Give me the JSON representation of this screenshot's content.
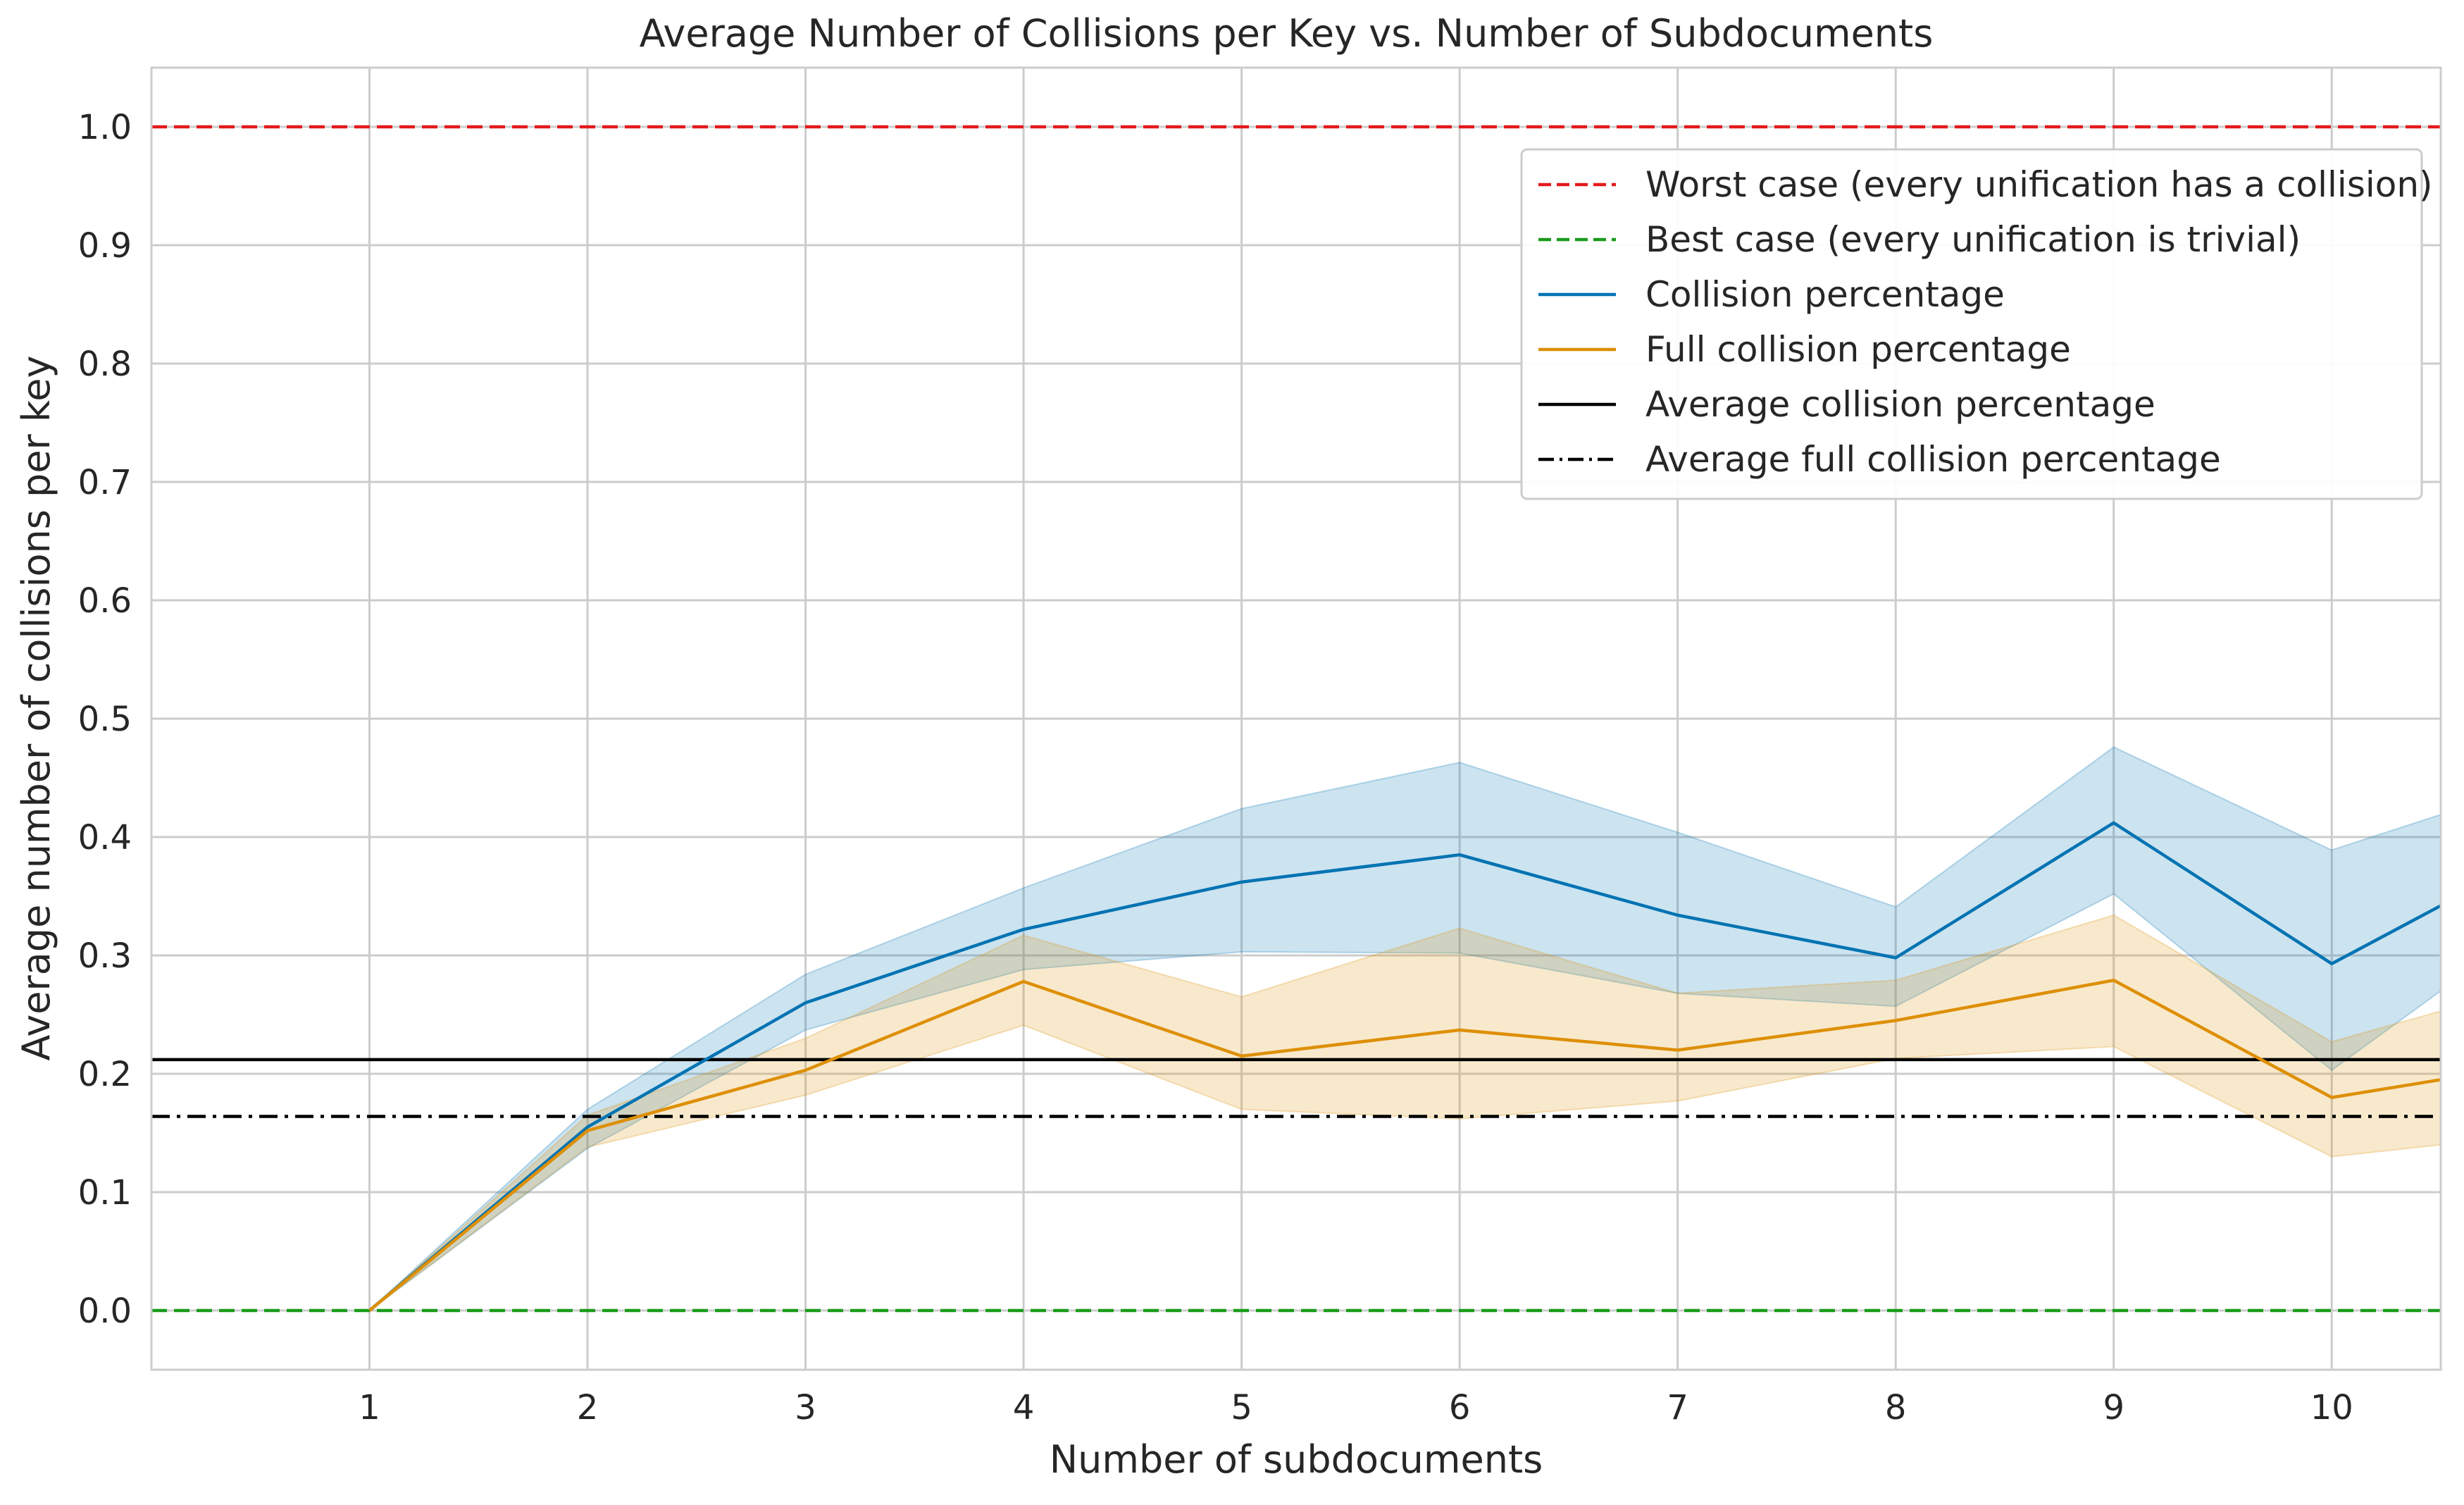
{
  "chart_data": {
    "type": "line",
    "title": "Average Number of Collisions per Key vs. Number of Subdocuments",
    "xlabel": "Number of subdocuments",
    "ylabel": "Average number of collisions per key",
    "xlim": [
      0,
      10.5
    ],
    "ylim": [
      -0.05,
      1.05
    ],
    "xticks": [
      1,
      2,
      3,
      4,
      5,
      6,
      7,
      8,
      9,
      10
    ],
    "yticks": [
      0.0,
      0.1,
      0.2,
      0.3,
      0.4,
      0.5,
      0.6,
      0.7,
      0.8,
      0.9,
      1.0
    ],
    "ytick_labels": [
      "0.0",
      "0.1",
      "0.2",
      "0.3",
      "0.4",
      "0.5",
      "0.6",
      "0.7",
      "0.8",
      "0.9",
      "1.0"
    ],
    "grid": true,
    "legend_position": "top-right",
    "x": [
      1,
      2,
      3,
      4,
      5,
      6,
      7,
      8,
      9,
      10,
      10.5
    ],
    "series": [
      {
        "name": "Collision percentage",
        "color": "#0173b2",
        "style": "solid",
        "values": [
          0.0,
          0.155,
          0.26,
          0.322,
          0.362,
          0.385,
          0.334,
          0.298,
          0.412,
          0.293,
          0.342
        ],
        "band_upper": [
          0.0,
          0.17,
          0.284,
          0.357,
          0.424,
          0.463,
          0.404,
          0.341,
          0.476,
          0.389,
          0.419
        ],
        "band_lower": [
          0.0,
          0.137,
          0.237,
          0.288,
          0.303,
          0.302,
          0.268,
          0.257,
          0.352,
          0.203,
          0.27
        ]
      },
      {
        "name": "Full collision percentage",
        "color": "#de8f05",
        "style": "solid",
        "values": [
          0.0,
          0.152,
          0.203,
          0.278,
          0.215,
          0.237,
          0.22,
          0.245,
          0.279,
          0.18,
          0.195
        ],
        "band_upper": [
          0.0,
          0.165,
          0.23,
          0.317,
          0.265,
          0.323,
          0.268,
          0.279,
          0.334,
          0.227,
          0.253
        ],
        "band_lower": [
          0.0,
          0.138,
          0.182,
          0.241,
          0.17,
          0.162,
          0.177,
          0.213,
          0.223,
          0.13,
          0.14
        ]
      }
    ],
    "reference_lines": [
      {
        "name": "Worst case (every unification has a collision)",
        "y": 1.0,
        "color": "#e41a1c",
        "style": "dashed"
      },
      {
        "name": "Best case (every unification is trivial)",
        "y": 0.0,
        "color": "#1a9a1a",
        "style": "dashed"
      },
      {
        "name": "Average collision percentage",
        "y": 0.212,
        "color": "#000000",
        "style": "solid"
      },
      {
        "name": "Average full collision percentage",
        "y": 0.164,
        "color": "#000000",
        "style": "dashdot"
      }
    ],
    "legend": [
      {
        "label": "Worst case (every unification has a collision)",
        "color": "#e41a1c",
        "style": "dashed"
      },
      {
        "label": "Best case (every unification is trivial)",
        "color": "#1a9a1a",
        "style": "dashed"
      },
      {
        "label": "Collision percentage",
        "color": "#0173b2",
        "style": "solid"
      },
      {
        "label": "Full collision percentage",
        "color": "#de8f05",
        "style": "solid"
      },
      {
        "label": "Average collision percentage",
        "color": "#000000",
        "style": "solid"
      },
      {
        "label": "Average full collision percentage",
        "color": "#000000",
        "style": "dashdot"
      }
    ]
  }
}
